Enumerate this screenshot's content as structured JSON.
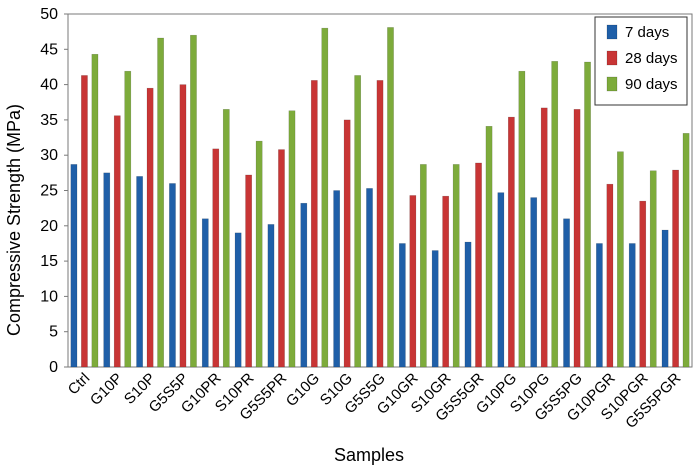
{
  "chart_data": {
    "type": "bar",
    "title": "",
    "xlabel": "Samples",
    "ylabel": "Compressive Strength (MPa)",
    "ylim": [
      0,
      50
    ],
    "yticks": [
      0,
      5,
      10,
      15,
      20,
      25,
      30,
      35,
      40,
      45,
      50
    ],
    "grid": false,
    "legend_position": "top-right",
    "categories": [
      "Ctrl",
      "G10P",
      "S10P",
      "G5S5P",
      "G10PR",
      "S10PR",
      "G5S5PR",
      "G10G",
      "S10G",
      "G5S5G",
      "G10GR",
      "S10GR",
      "G5S5GR",
      "G10PG",
      "S10PG",
      "G5S5PG",
      "G10PGR",
      "S10PGR",
      "G5S5PGR"
    ],
    "series": [
      {
        "name": "7 days",
        "color": "#1f5fa8",
        "values": [
          28.7,
          27.5,
          27.0,
          26.0,
          21.0,
          19.0,
          20.2,
          23.2,
          25.0,
          25.3,
          17.5,
          16.5,
          17.7,
          24.7,
          24.0,
          21.0,
          17.5,
          17.5,
          19.4
        ]
      },
      {
        "name": "28 days",
        "color": "#c83535",
        "values": [
          41.3,
          35.6,
          39.5,
          40.0,
          30.9,
          27.2,
          30.8,
          40.6,
          35.0,
          40.6,
          24.3,
          24.2,
          28.9,
          35.4,
          36.7,
          36.5,
          25.9,
          23.5,
          27.9
        ]
      },
      {
        "name": "90 days",
        "color": "#7dab3b",
        "values": [
          44.3,
          41.9,
          46.6,
          47.0,
          36.5,
          32.0,
          36.3,
          48.0,
          41.3,
          48.1,
          28.7,
          28.7,
          34.1,
          41.9,
          43.3,
          43.2,
          30.5,
          27.8,
          33.1
        ]
      }
    ]
  }
}
